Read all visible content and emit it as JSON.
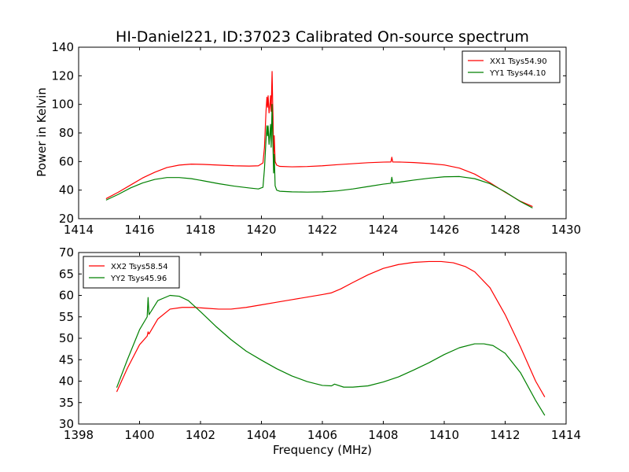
{
  "figure": {
    "title": "HI-Daniel221, ID:37023 Calibrated On-source spectrum",
    "xlabel": "Frequency (MHz)"
  },
  "chart_data": [
    {
      "type": "line",
      "title": "HI-Daniel221, ID:37023 Calibrated On-source spectrum",
      "xlabel": "",
      "ylabel": "Power in Kelvin",
      "xlim": [
        1414,
        1430
      ],
      "ylim": [
        20,
        140
      ],
      "xticks": [
        1414,
        1416,
        1418,
        1420,
        1422,
        1424,
        1426,
        1428,
        1430
      ],
      "yticks": [
        20,
        40,
        60,
        80,
        100,
        120,
        140
      ],
      "legend_position": "top-right",
      "grid": false,
      "series": [
        {
          "name": "XX1 Tsys54.90",
          "color": "#ff0000",
          "x": [
            1414.9,
            1415.3,
            1415.7,
            1416.1,
            1416.5,
            1416.9,
            1417.3,
            1417.7,
            1418.1,
            1418.6,
            1419.1,
            1419.6,
            1419.9,
            1420.05,
            1420.1,
            1420.15,
            1420.18,
            1420.2,
            1420.22,
            1420.25,
            1420.28,
            1420.3,
            1420.32,
            1420.35,
            1420.37,
            1420.38,
            1420.4,
            1420.42,
            1420.45,
            1420.5,
            1420.6,
            1421.0,
            1421.5,
            1422.0,
            1422.5,
            1423.0,
            1423.5,
            1424.0,
            1424.25,
            1424.28,
            1424.31,
            1424.6,
            1425.0,
            1425.5,
            1426.0,
            1426.5,
            1427.0,
            1427.5,
            1428.0,
            1428.5,
            1428.9
          ],
          "y": [
            34,
            38.5,
            43.5,
            48.5,
            52.5,
            55.8,
            57.5,
            58.2,
            58.0,
            57.5,
            57.0,
            56.8,
            57.0,
            59,
            70,
            95,
            105,
            98,
            106,
            94,
            100,
            106,
            95,
            123,
            100,
            92,
            65,
            78,
            60,
            57.5,
            56.6,
            56.3,
            56.5,
            57.0,
            57.8,
            58.5,
            59.2,
            59.6,
            59.7,
            63,
            59.7,
            59.6,
            59.3,
            58.6,
            57.6,
            55.4,
            51.2,
            45.2,
            38.5,
            32.2,
            28.5
          ]
        },
        {
          "name": "YY1 Tsys44.10",
          "color": "#008000",
          "x": [
            1414.9,
            1415.3,
            1415.7,
            1416.1,
            1416.5,
            1416.9,
            1417.3,
            1417.7,
            1418.1,
            1418.6,
            1419.1,
            1419.6,
            1419.9,
            1420.05,
            1420.1,
            1420.15,
            1420.18,
            1420.2,
            1420.22,
            1420.25,
            1420.28,
            1420.3,
            1420.32,
            1420.35,
            1420.37,
            1420.38,
            1420.4,
            1420.42,
            1420.45,
            1420.5,
            1420.6,
            1421.0,
            1421.5,
            1422.0,
            1422.5,
            1423.0,
            1423.5,
            1424.0,
            1424.25,
            1424.28,
            1424.31,
            1424.6,
            1425.0,
            1425.5,
            1426.0,
            1426.5,
            1427.0,
            1427.5,
            1428.0,
            1428.5,
            1428.9
          ],
          "y": [
            33,
            37,
            41.5,
            45,
            47.5,
            48.8,
            48.8,
            48.0,
            46.5,
            44.5,
            42.8,
            41.5,
            40.8,
            42,
            55,
            75,
            85,
            78,
            85,
            72,
            80,
            86,
            70,
            100,
            78,
            70,
            52,
            65,
            43,
            40,
            39.2,
            38.8,
            38.6,
            38.8,
            39.5,
            40.8,
            42.5,
            44.2,
            44.8,
            49,
            45,
            45.8,
            47.0,
            48.3,
            49.3,
            49.5,
            48.0,
            44.5,
            38.8,
            32.0,
            27.5
          ]
        }
      ]
    },
    {
      "type": "line",
      "title": "",
      "xlabel": "Frequency (MHz)",
      "ylabel": "",
      "xlim": [
        1398,
        1414
      ],
      "ylim": [
        30,
        70
      ],
      "xticks": [
        1398,
        1400,
        1402,
        1404,
        1406,
        1408,
        1410,
        1412,
        1414
      ],
      "yticks": [
        30,
        35,
        40,
        45,
        50,
        55,
        60,
        65,
        70
      ],
      "legend_position": "top-left",
      "grid": false,
      "series": [
        {
          "name": "XX2 Tsys58.54",
          "color": "#ff0000",
          "x": [
            1399.25,
            1399.6,
            1400.0,
            1400.25,
            1400.28,
            1400.31,
            1400.6,
            1401.0,
            1401.4,
            1401.8,
            1402.2,
            1402.6,
            1403.0,
            1403.5,
            1404.0,
            1404.5,
            1405.0,
            1405.5,
            1406.0,
            1406.3,
            1406.6,
            1407.0,
            1407.5,
            1408.0,
            1408.5,
            1409.0,
            1409.5,
            1409.9,
            1410.3,
            1410.7,
            1411.0,
            1411.5,
            1412.0,
            1412.5,
            1413.0,
            1413.3
          ],
          "y": [
            37.5,
            43,
            48.5,
            50.5,
            51.5,
            51,
            54.5,
            56.8,
            57.2,
            57.2,
            57.0,
            56.8,
            56.8,
            57.2,
            57.8,
            58.4,
            59.0,
            59.6,
            60.2,
            60.6,
            61.5,
            63.0,
            64.8,
            66.3,
            67.2,
            67.7,
            67.9,
            67.9,
            67.6,
            66.7,
            65.5,
            61.8,
            55.5,
            48.0,
            40.0,
            36.3
          ]
        },
        {
          "name": "YY2 Tsys45.96",
          "color": "#008000",
          "x": [
            1399.25,
            1399.6,
            1400.0,
            1400.25,
            1400.28,
            1400.31,
            1400.6,
            1401.0,
            1401.3,
            1401.6,
            1402.0,
            1402.5,
            1403.0,
            1403.5,
            1404.0,
            1404.5,
            1405.0,
            1405.5,
            1406.0,
            1406.3,
            1406.4,
            1406.7,
            1407.0,
            1407.5,
            1408.0,
            1408.5,
            1409.0,
            1409.5,
            1410.0,
            1410.5,
            1411.0,
            1411.3,
            1411.6,
            1412.0,
            1412.5,
            1413.0,
            1413.3
          ],
          "y": [
            38.5,
            45,
            52,
            55,
            59.5,
            55.5,
            58.8,
            60.0,
            59.8,
            58.8,
            56.2,
            52.8,
            49.7,
            47.0,
            44.9,
            42.9,
            41.2,
            39.9,
            39.0,
            38.9,
            39.3,
            38.6,
            38.6,
            38.9,
            39.8,
            41.0,
            42.6,
            44.3,
            46.2,
            47.8,
            48.7,
            48.7,
            48.3,
            46.5,
            42.0,
            35.5,
            32.0
          ]
        }
      ]
    }
  ]
}
